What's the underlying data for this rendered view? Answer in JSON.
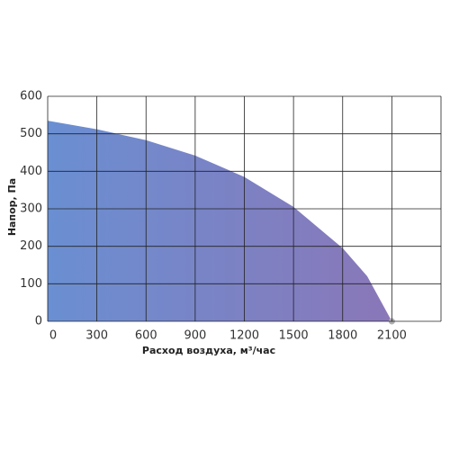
{
  "chart_data": {
    "type": "area",
    "x_label": "Расход воздуха, м³/час",
    "y_label": "Напор, Па",
    "x": [
      0,
      300,
      600,
      900,
      1200,
      1500,
      1800,
      1950,
      2100
    ],
    "values": [
      535,
      512,
      483,
      442,
      385,
      305,
      195,
      120,
      0
    ],
    "gradient": [
      "#6a8fd2",
      "#8a77b8"
    ],
    "end_marker_color": "#b0b0b0",
    "grid_color": "#222222",
    "xlim": [
      0,
      2400
    ],
    "xticks": [
      0,
      300,
      600,
      900,
      1200,
      1500,
      1800,
      2100
    ],
    "ylim": [
      0,
      600
    ],
    "yticks": [
      0,
      100,
      200,
      300,
      400,
      500,
      600
    ],
    "grid": true
  }
}
